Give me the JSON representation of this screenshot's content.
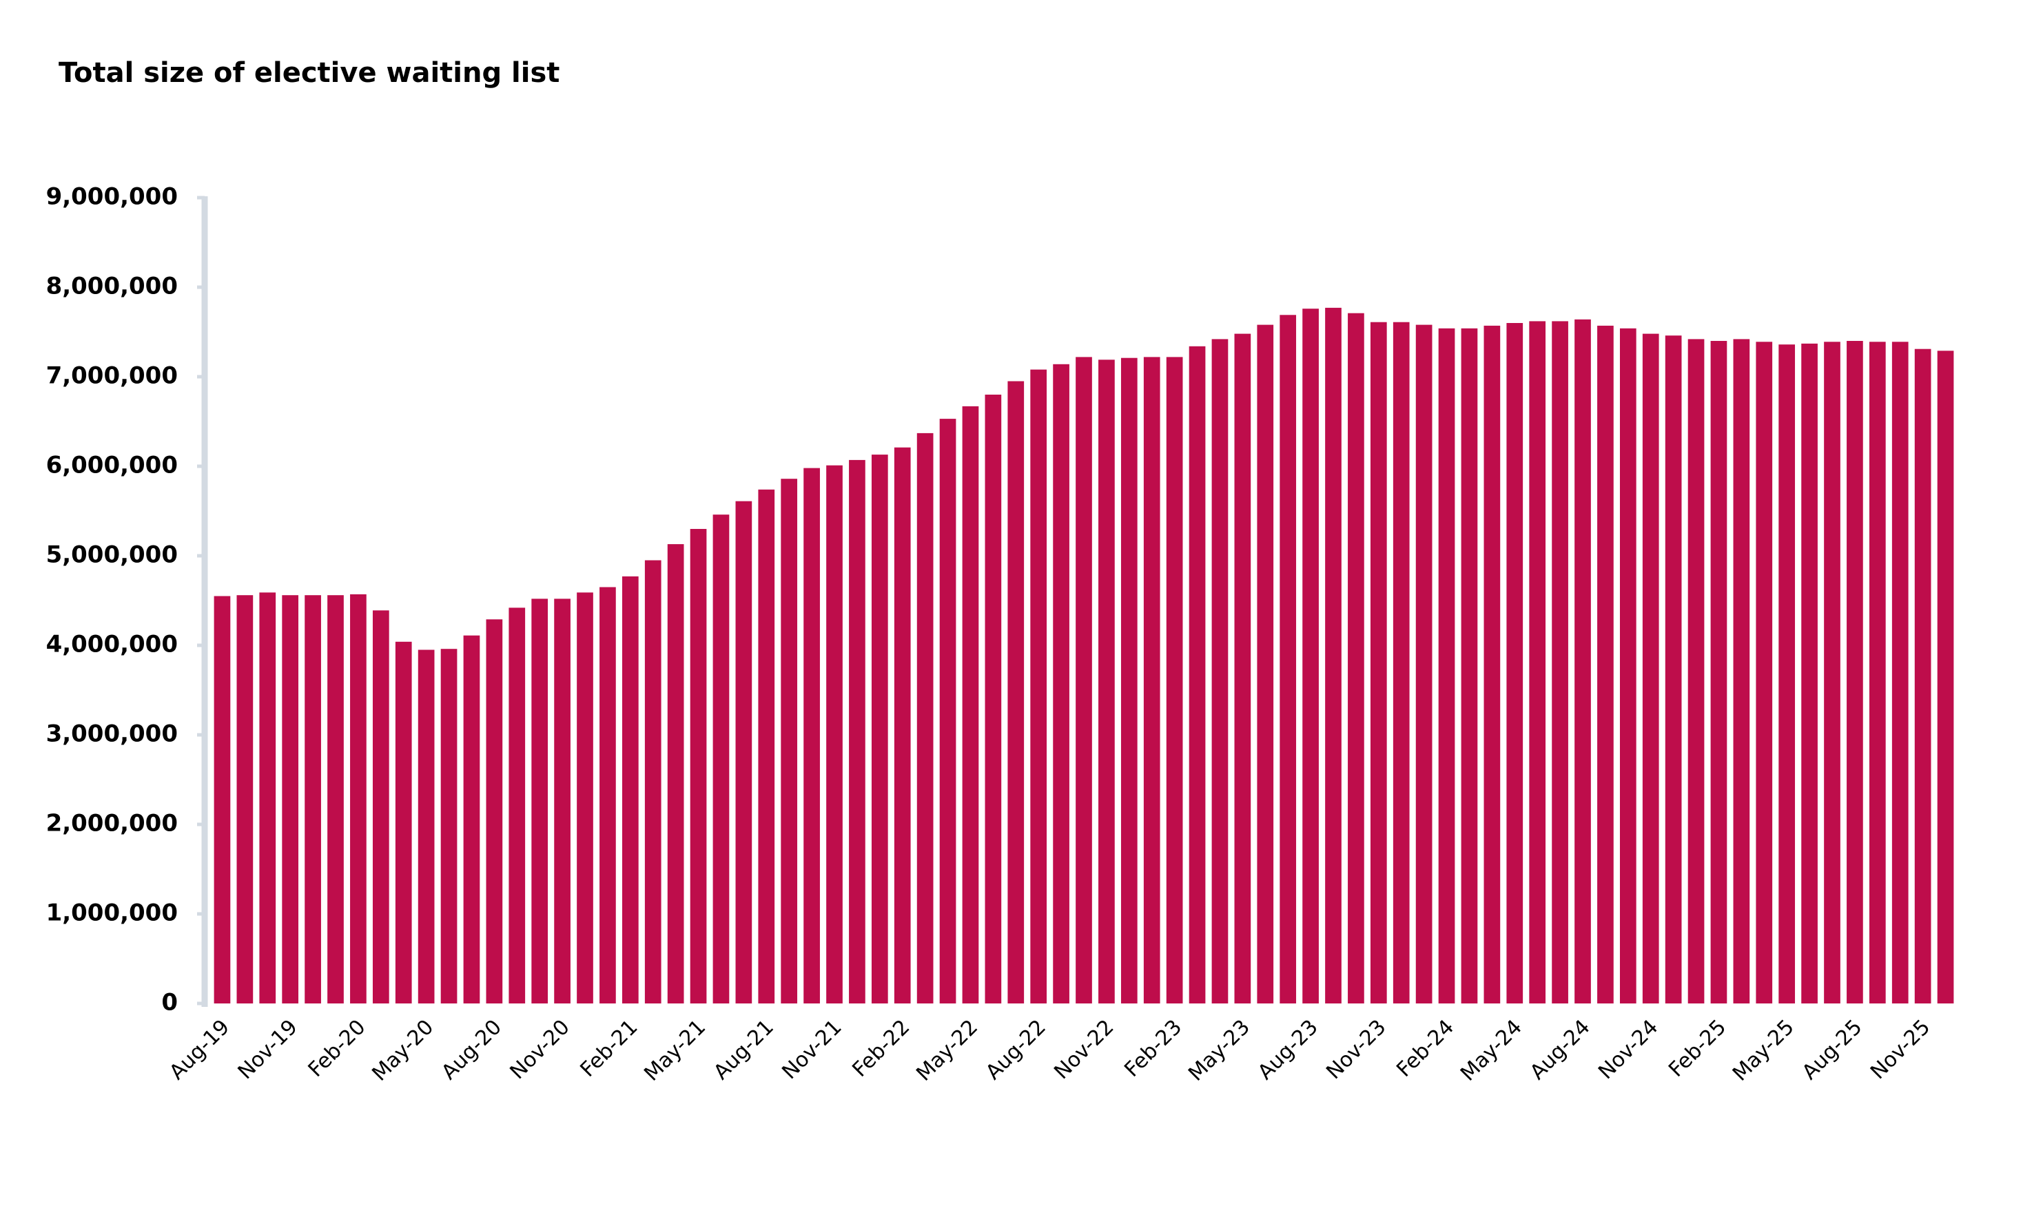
{
  "chart_data": {
    "type": "bar",
    "title": "Total size of elective waiting list",
    "categories": [
      "Aug-19",
      null,
      null,
      "Nov-19",
      null,
      null,
      "Feb-20",
      null,
      null,
      "May-20",
      null,
      null,
      "Aug-20",
      null,
      null,
      "Nov-20",
      null,
      null,
      "Feb-21",
      null,
      null,
      "May-21",
      null,
      null,
      "Aug-21",
      null,
      null,
      "Nov-21",
      null,
      null,
      "Feb-22",
      null,
      null,
      "May-22",
      null,
      null,
      "Aug-22",
      null,
      null,
      "Nov-22",
      null,
      null,
      "Feb-23",
      null,
      null,
      "May-23",
      null,
      null,
      "Aug-23",
      null,
      null,
      "Nov-23",
      null,
      null,
      "Feb-24",
      null,
      null,
      "May-24",
      null,
      null,
      "Aug-24",
      null,
      null,
      "Nov-24",
      null,
      null,
      "Feb-25",
      null,
      null,
      "May-25",
      null,
      null,
      "Aug-25",
      null,
      null,
      "Nov-25",
      null
    ],
    "values": [
      4550000,
      4560000,
      4590000,
      4560000,
      4560000,
      4560000,
      4570000,
      4390000,
      4040000,
      3950000,
      3960000,
      4110000,
      4290000,
      4420000,
      4520000,
      4520000,
      4590000,
      4650000,
      4770000,
      4950000,
      5130000,
      5300000,
      5460000,
      5610000,
      5740000,
      5860000,
      5980000,
      6010000,
      6070000,
      6130000,
      6210000,
      6370000,
      6530000,
      6670000,
      6800000,
      6950000,
      7080000,
      7140000,
      7220000,
      7190000,
      7210000,
      7220000,
      7220000,
      7340000,
      7420000,
      7480000,
      7580000,
      7690000,
      7760000,
      7770000,
      7710000,
      7610000,
      7610000,
      7580000,
      7540000,
      7540000,
      7570000,
      7600000,
      7620000,
      7620000,
      7640000,
      7570000,
      7540000,
      7480000,
      7460000,
      7420000,
      7400000,
      7420000,
      7390000,
      7360000,
      7370000,
      7390000,
      7400000,
      7390000,
      7390000,
      7310000,
      7290000
    ],
    "color": "#be0d4b",
    "ylim": [
      0,
      9000000
    ],
    "yticks": [
      0,
      {
        "value": 1000000,
        "label": "1,000,000"
      },
      {
        "value": 2000000,
        "label": "2,000,000"
      },
      {
        "value": 3000000,
        "label": "3,000,000"
      },
      {
        "value": 4000000,
        "label": "4,000,000"
      },
      {
        "value": 5000000,
        "label": "5,000,000"
      },
      {
        "value": 6000000,
        "label": "6,000,000"
      },
      {
        "value": 7000000,
        "label": "7,000,000"
      },
      {
        "value": 8000000,
        "label": "8,000,000"
      },
      {
        "value": 9000000,
        "label": "9,000,000"
      }
    ],
    "grid": false
  }
}
